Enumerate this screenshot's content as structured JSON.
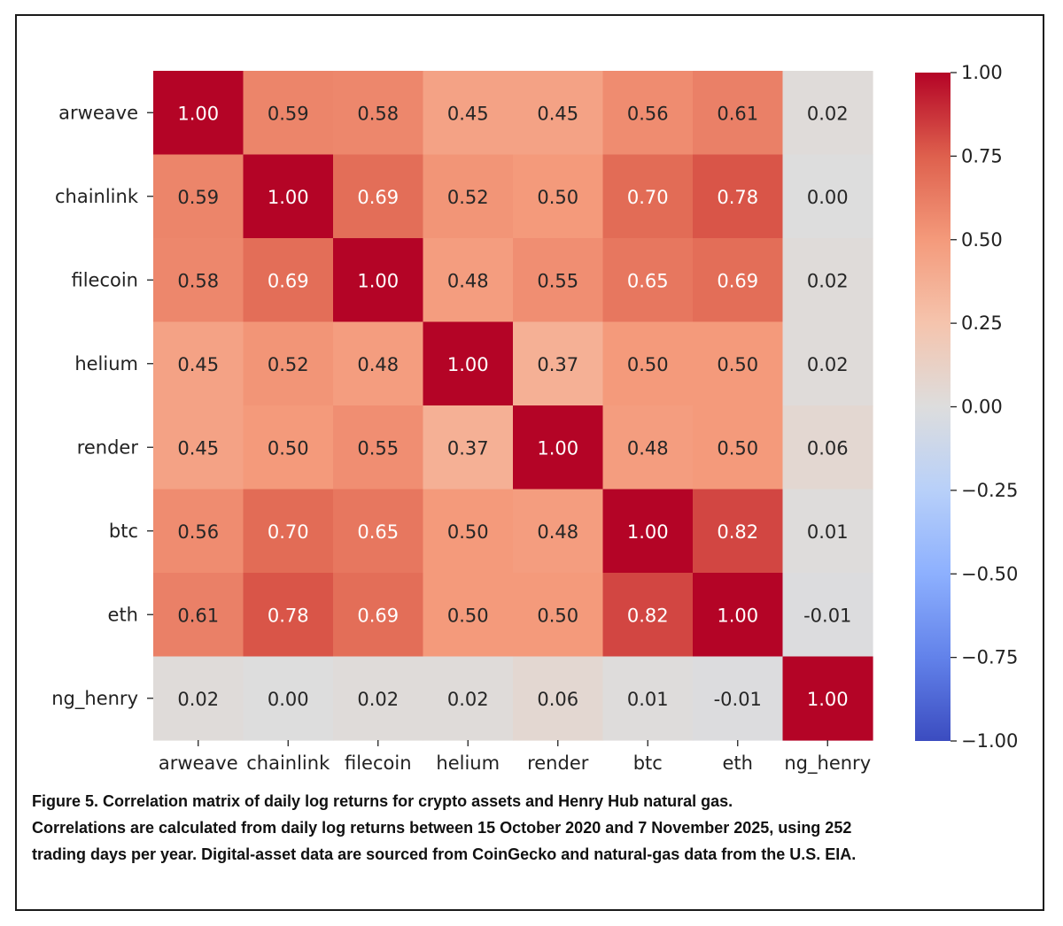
{
  "chart_data": {
    "type": "heatmap",
    "title": "",
    "labels": [
      "arweave",
      "chainlink",
      "filecoin",
      "helium",
      "render",
      "btc",
      "eth",
      "ng_henry"
    ],
    "values": [
      [
        1.0,
        0.59,
        0.58,
        0.45,
        0.45,
        0.56,
        0.61,
        0.02
      ],
      [
        0.59,
        1.0,
        0.69,
        0.52,
        0.5,
        0.7,
        0.78,
        0.0
      ],
      [
        0.58,
        0.69,
        1.0,
        0.48,
        0.55,
        0.65,
        0.69,
        0.02
      ],
      [
        0.45,
        0.52,
        0.48,
        1.0,
        0.37,
        0.5,
        0.5,
        0.02
      ],
      [
        0.45,
        0.5,
        0.55,
        0.37,
        1.0,
        0.48,
        0.5,
        0.06
      ],
      [
        0.56,
        0.7,
        0.65,
        0.5,
        0.48,
        1.0,
        0.82,
        0.01
      ],
      [
        0.61,
        0.78,
        0.69,
        0.5,
        0.5,
        0.82,
        1.0,
        -0.01
      ],
      [
        0.02,
        0.0,
        0.02,
        0.02,
        0.06,
        0.01,
        -0.01,
        1.0
      ]
    ],
    "value_format": "0.00",
    "colormap": "coolwarm",
    "vmin": -1.0,
    "vmax": 1.0,
    "colorbar_ticks": [
      "1.00",
      "0.75",
      "0.50",
      "0.25",
      "0.00",
      "−0.25",
      "−0.50",
      "−0.75",
      "−1.00"
    ],
    "colorbar_tick_values": [
      1.0,
      0.75,
      0.5,
      0.25,
      0.0,
      -0.25,
      -0.5,
      -0.75,
      -1.0
    ],
    "colors": {
      "low": "#3b4cc0",
      "mid": "#dddddd",
      "high": "#b40426"
    }
  },
  "caption": {
    "line1": "Figure 5. Correlation matrix of daily log returns for crypto assets and Henry Hub natural gas.",
    "line2": "Correlations are calculated from daily log returns between 15 October 2020 and 7 November 2025, using 252",
    "line3": "trading days per year. Digital-asset data are sourced from CoinGecko and natural-gas data from the U.S. EIA."
  }
}
